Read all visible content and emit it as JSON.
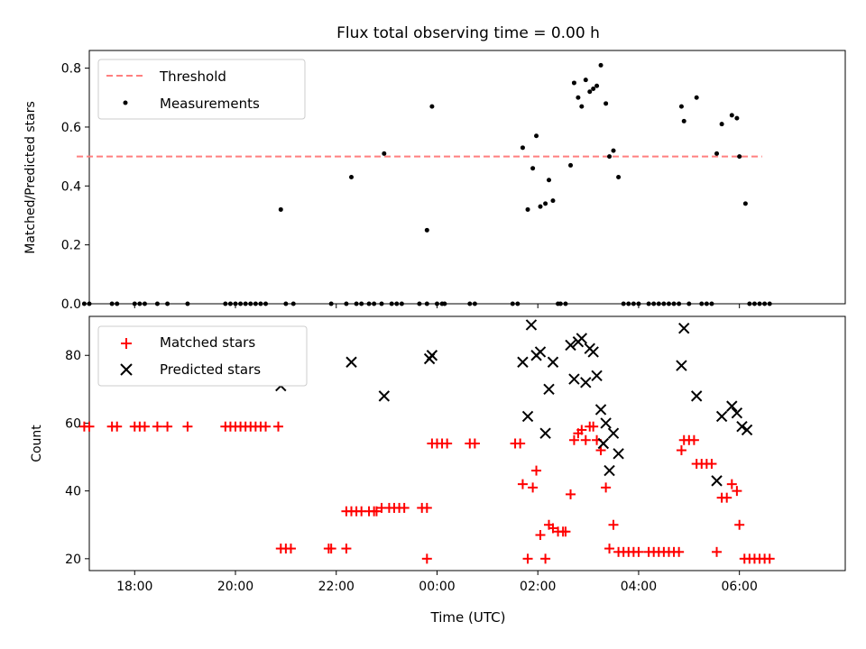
{
  "figure": {
    "title": "Flux total observing time = 0.00 h",
    "xlabel": "Time (UTC)"
  },
  "chart_data": [
    {
      "type": "scatter",
      "ylabel": "Matched/Predicted stars",
      "xlim": [
        -6.9,
        8.1
      ],
      "ylim": [
        0,
        0.86
      ],
      "xticks": [
        -6,
        -4,
        -2,
        0,
        2,
        4,
        6
      ],
      "xticklabels": [
        "18:00",
        "20:00",
        "22:00",
        "00:00",
        "02:00",
        "04:00",
        "06:00"
      ],
      "yticks": [
        0,
        0.2,
        0.4,
        0.6,
        0.8
      ],
      "yticklabels": [
        "0.0",
        "0.2",
        "0.4",
        "0.6",
        "0.8"
      ],
      "legend_position": "upper left",
      "legend": [
        "Threshold",
        "Measurements"
      ],
      "threshold": {
        "name": "Threshold",
        "y": 0.5,
        "x_start": -7.15,
        "x_end": 6.45,
        "color": "#ff7f7f"
      },
      "series": [
        {
          "name": "Measurements",
          "color": "#000000",
          "points": [
            [
              -7.0,
              0
            ],
            [
              -6.9,
              0
            ],
            [
              -6.45,
              0
            ],
            [
              -6.35,
              0
            ],
            [
              -6.0,
              0
            ],
            [
              -5.9,
              0
            ],
            [
              -5.8,
              0
            ],
            [
              -5.55,
              0
            ],
            [
              -5.35,
              0
            ],
            [
              -4.95,
              0
            ],
            [
              -4.2,
              0
            ],
            [
              -4.1,
              0
            ],
            [
              -4.0,
              0
            ],
            [
              -3.9,
              0
            ],
            [
              -3.8,
              0
            ],
            [
              -3.7,
              0
            ],
            [
              -3.6,
              0
            ],
            [
              -3.5,
              0
            ],
            [
              -3.4,
              0
            ],
            [
              -3.1,
              0.32
            ],
            [
              -3.0,
              0
            ],
            [
              -2.85,
              0
            ],
            [
              -2.1,
              0
            ],
            [
              -1.8,
              0
            ],
            [
              -1.7,
              0.43
            ],
            [
              -1.6,
              0
            ],
            [
              -1.5,
              0
            ],
            [
              -1.35,
              0
            ],
            [
              -1.25,
              0
            ],
            [
              -1.1,
              0
            ],
            [
              -1.05,
              0.51
            ],
            [
              -0.9,
              0
            ],
            [
              -0.8,
              0
            ],
            [
              -0.7,
              0
            ],
            [
              -0.35,
              0
            ],
            [
              -0.2,
              0
            ],
            [
              -0.2,
              0.25
            ],
            [
              -0.1,
              0.67
            ],
            [
              0.0,
              0
            ],
            [
              0.1,
              0
            ],
            [
              0.15,
              0
            ],
            [
              0.65,
              0
            ],
            [
              0.75,
              0
            ],
            [
              1.5,
              0
            ],
            [
              1.6,
              0
            ],
            [
              1.7,
              0.53
            ],
            [
              1.8,
              0.32
            ],
            [
              1.9,
              0.46
            ],
            [
              1.97,
              0.57
            ],
            [
              2.05,
              0.33
            ],
            [
              2.15,
              0.34
            ],
            [
              2.22,
              0.42
            ],
            [
              2.3,
              0.35
            ],
            [
              2.4,
              0
            ],
            [
              2.45,
              0
            ],
            [
              2.55,
              0
            ],
            [
              2.65,
              0.47
            ],
            [
              2.72,
              0.75
            ],
            [
              2.8,
              0.7
            ],
            [
              2.87,
              0.67
            ],
            [
              2.95,
              0.76
            ],
            [
              3.03,
              0.72
            ],
            [
              3.1,
              0.73
            ],
            [
              3.17,
              0.74
            ],
            [
              3.25,
              0.81
            ],
            [
              3.35,
              0.68
            ],
            [
              3.42,
              0.5
            ],
            [
              3.5,
              0.52
            ],
            [
              3.6,
              0.43
            ],
            [
              3.7,
              0
            ],
            [
              3.8,
              0
            ],
            [
              3.9,
              0
            ],
            [
              4.0,
              0
            ],
            [
              4.2,
              0
            ],
            [
              4.3,
              0
            ],
            [
              4.4,
              0
            ],
            [
              4.5,
              0
            ],
            [
              4.6,
              0
            ],
            [
              4.7,
              0
            ],
            [
              4.8,
              0
            ],
            [
              4.85,
              0.67
            ],
            [
              4.9,
              0.62
            ],
            [
              5.0,
              0
            ],
            [
              5.15,
              0.7
            ],
            [
              5.25,
              0
            ],
            [
              5.35,
              0
            ],
            [
              5.45,
              0
            ],
            [
              5.55,
              0.51
            ],
            [
              5.65,
              0.61
            ],
            [
              5.85,
              0.64
            ],
            [
              5.95,
              0.63
            ],
            [
              6.0,
              0.5
            ],
            [
              6.12,
              0.34
            ],
            [
              6.2,
              0
            ],
            [
              6.3,
              0
            ],
            [
              6.4,
              0
            ],
            [
              6.5,
              0
            ],
            [
              6.6,
              0
            ]
          ]
        }
      ]
    },
    {
      "type": "scatter",
      "ylabel": "Count",
      "xlim": [
        -6.9,
        8.1
      ],
      "ylim": [
        16.5,
        91.5
      ],
      "xticks": [
        -6,
        -4,
        -2,
        0,
        2,
        4,
        6
      ],
      "xticklabels": [
        "18:00",
        "20:00",
        "22:00",
        "00:00",
        "02:00",
        "04:00",
        "06:00"
      ],
      "yticks": [
        20,
        40,
        60,
        80
      ],
      "yticklabels": [
        "20",
        "40",
        "60",
        "80"
      ],
      "legend_position": "upper left",
      "legend": [
        "Matched stars",
        "Predicted stars"
      ],
      "series": [
        {
          "name": "Matched stars",
          "marker": "plus",
          "color": "#ff0000",
          "points": [
            [
              -7.0,
              59
            ],
            [
              -6.9,
              59
            ],
            [
              -6.45,
              59
            ],
            [
              -6.35,
              59
            ],
            [
              -6.0,
              59
            ],
            [
              -5.9,
              59
            ],
            [
              -5.8,
              59
            ],
            [
              -5.55,
              59
            ],
            [
              -5.35,
              59
            ],
            [
              -4.95,
              59
            ],
            [
              -4.2,
              59
            ],
            [
              -4.1,
              59
            ],
            [
              -4.0,
              59
            ],
            [
              -3.9,
              59
            ],
            [
              -3.8,
              59
            ],
            [
              -3.7,
              59
            ],
            [
              -3.6,
              59
            ],
            [
              -3.5,
              59
            ],
            [
              -3.4,
              59
            ],
            [
              -3.15,
              59
            ],
            [
              -3.1,
              23
            ],
            [
              -3.0,
              23
            ],
            [
              -2.9,
              23
            ],
            [
              -2.15,
              23
            ],
            [
              -2.1,
              23
            ],
            [
              -1.8,
              23
            ],
            [
              -1.8,
              34
            ],
            [
              -1.7,
              34
            ],
            [
              -1.6,
              34
            ],
            [
              -1.5,
              34
            ],
            [
              -1.35,
              34
            ],
            [
              -1.25,
              34
            ],
            [
              -1.2,
              34
            ],
            [
              -1.1,
              35
            ],
            [
              -0.95,
              35
            ],
            [
              -0.85,
              35
            ],
            [
              -0.75,
              35
            ],
            [
              -0.65,
              35
            ],
            [
              -0.3,
              35
            ],
            [
              -0.2,
              35
            ],
            [
              -0.2,
              20
            ],
            [
              -0.1,
              54
            ],
            [
              0.0,
              54
            ],
            [
              0.1,
              54
            ],
            [
              0.2,
              54
            ],
            [
              0.65,
              54
            ],
            [
              0.75,
              54
            ],
            [
              1.55,
              54
            ],
            [
              1.65,
              54
            ],
            [
              1.7,
              42
            ],
            [
              1.8,
              20
            ],
            [
              1.9,
              41
            ],
            [
              1.97,
              46
            ],
            [
              2.05,
              27
            ],
            [
              2.15,
              20
            ],
            [
              2.22,
              30
            ],
            [
              2.3,
              29
            ],
            [
              2.4,
              28
            ],
            [
              2.5,
              28
            ],
            [
              2.55,
              28
            ],
            [
              2.65,
              39
            ],
            [
              2.72,
              55
            ],
            [
              2.8,
              57
            ],
            [
              2.87,
              58
            ],
            [
              2.95,
              55
            ],
            [
              3.03,
              59
            ],
            [
              3.1,
              59
            ],
            [
              3.17,
              55
            ],
            [
              3.25,
              52
            ],
            [
              3.35,
              41
            ],
            [
              3.42,
              23
            ],
            [
              3.5,
              30
            ],
            [
              3.6,
              22
            ],
            [
              3.7,
              22
            ],
            [
              3.8,
              22
            ],
            [
              3.9,
              22
            ],
            [
              4.0,
              22
            ],
            [
              4.2,
              22
            ],
            [
              4.3,
              22
            ],
            [
              4.4,
              22
            ],
            [
              4.5,
              22
            ],
            [
              4.6,
              22
            ],
            [
              4.7,
              22
            ],
            [
              4.8,
              22
            ],
            [
              4.85,
              52
            ],
            [
              4.9,
              55
            ],
            [
              5.0,
              55
            ],
            [
              5.1,
              55
            ],
            [
              5.15,
              48
            ],
            [
              5.25,
              48
            ],
            [
              5.35,
              48
            ],
            [
              5.45,
              48
            ],
            [
              5.55,
              22
            ],
            [
              5.65,
              38
            ],
            [
              5.75,
              38
            ],
            [
              5.85,
              42
            ],
            [
              5.95,
              40
            ],
            [
              6.0,
              30
            ],
            [
              6.1,
              20
            ],
            [
              6.2,
              20
            ],
            [
              6.3,
              20
            ],
            [
              6.4,
              20
            ],
            [
              6.5,
              20
            ],
            [
              6.6,
              20
            ]
          ]
        },
        {
          "name": "Predicted stars",
          "marker": "x",
          "color": "#000000",
          "points": [
            [
              -3.1,
              71
            ],
            [
              -1.7,
              78
            ],
            [
              -1.05,
              68
            ],
            [
              -0.15,
              79
            ],
            [
              -0.1,
              80
            ],
            [
              1.7,
              78
            ],
            [
              1.8,
              62
            ],
            [
              1.87,
              89
            ],
            [
              1.97,
              80
            ],
            [
              2.05,
              81
            ],
            [
              2.15,
              57
            ],
            [
              2.22,
              70
            ],
            [
              2.3,
              78
            ],
            [
              2.65,
              83
            ],
            [
              2.72,
              73
            ],
            [
              2.8,
              84
            ],
            [
              2.87,
              85
            ],
            [
              2.95,
              72
            ],
            [
              3.03,
              82
            ],
            [
              3.1,
              81
            ],
            [
              3.17,
              74
            ],
            [
              3.25,
              64
            ],
            [
              3.35,
              60
            ],
            [
              3.42,
              46
            ],
            [
              3.5,
              57
            ],
            [
              3.6,
              51
            ],
            [
              3.3,
              54
            ],
            [
              4.85,
              77
            ],
            [
              4.9,
              88
            ],
            [
              5.15,
              68
            ],
            [
              5.55,
              43
            ],
            [
              5.65,
              62
            ],
            [
              5.85,
              65
            ],
            [
              5.95,
              63
            ],
            [
              6.05,
              59
            ],
            [
              6.15,
              58
            ]
          ]
        }
      ]
    }
  ]
}
